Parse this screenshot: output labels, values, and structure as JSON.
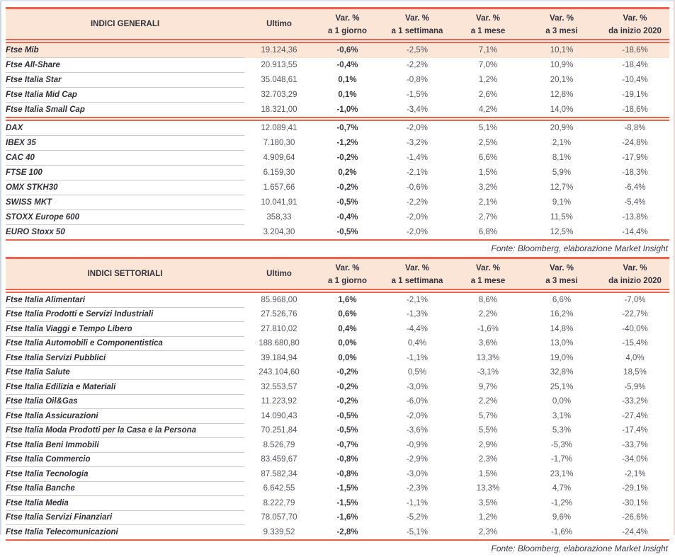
{
  "colors": {
    "accent_coral": "#f1604b",
    "header_bg": "#fbe5d6",
    "highlight_row_bg": "#fbe6d7",
    "name_text": "#2f2f3a",
    "number_text": "#54545e",
    "row_separator": "#c9c9c9"
  },
  "column_names": [
    "ultimo",
    "var-1-giorno",
    "var-1-settimana",
    "var-1-mese",
    "var-3-mesi",
    "var-inizio-2020"
  ],
  "tables": [
    {
      "title": "INDICI GENERALI",
      "col_headers": [
        {
          "l1": "Ultimo",
          "l2": ""
        },
        {
          "l1": "Var. %",
          "l2": "a 1 giorno"
        },
        {
          "l1": "Var. %",
          "l2": "a 1 settimana"
        },
        {
          "l1": "Var. %",
          "l2": "a 1 mese"
        },
        {
          "l1": "Var. %",
          "l2": "a 3 mesi"
        },
        {
          "l1": "Var. %",
          "l2": "da inizio 2020"
        }
      ],
      "sections": [
        {
          "rows": [
            {
              "name": "Ftse Mib",
              "highlight": true,
              "values": [
                "19.124,36",
                "-0,6%",
                "-2,5%",
                "7,1%",
                "10,1%",
                "-18,6%"
              ]
            },
            {
              "name": "Ftse All-Share",
              "highlight": false,
              "values": [
                "20.913,55",
                "-0,4%",
                "-2,2%",
                "7,0%",
                "10,9%",
                "-18,4%"
              ]
            },
            {
              "name": "Ftse Italia Star",
              "highlight": false,
              "values": [
                "35.048,61",
                "0,1%",
                "-0,8%",
                "1,2%",
                "20,1%",
                "-10,4%"
              ]
            },
            {
              "name": "Ftse Italia Mid Cap",
              "highlight": false,
              "values": [
                "32.703,29",
                "0,1%",
                "-1,5%",
                "2,6%",
                "12,8%",
                "-19,1%"
              ]
            },
            {
              "name": "Ftse Italia Small Cap",
              "highlight": false,
              "values": [
                "18.321,00",
                "-1,0%",
                "-3,4%",
                "4,2%",
                "14,0%",
                "-18,6%"
              ]
            }
          ]
        },
        {
          "rows": [
            {
              "name": "DAX",
              "highlight": false,
              "values": [
                "12.089,41",
                "-0,7%",
                "-2,0%",
                "5,1%",
                "20,9%",
                "-8,8%"
              ]
            },
            {
              "name": "IBEX 35",
              "highlight": false,
              "values": [
                "7.180,30",
                "-1,2%",
                "-3,2%",
                "2,5%",
                "2,1%",
                "-24,8%"
              ]
            },
            {
              "name": "CAC 40",
              "highlight": false,
              "values": [
                "4.909,64",
                "-0,2%",
                "-1,4%",
                "6,6%",
                "8,1%",
                "-17,9%"
              ]
            },
            {
              "name": "FTSE 100",
              "highlight": false,
              "values": [
                "6.159,30",
                "0,2%",
                "-2,1%",
                "1,5%",
                "5,9%",
                "-18,3%"
              ]
            },
            {
              "name": "OMX STKH30",
              "highlight": false,
              "values": [
                "1.657,66",
                "-0,2%",
                "-0,6%",
                "3,2%",
                "12,7%",
                "-6,4%"
              ]
            },
            {
              "name": "SWISS MKT",
              "highlight": false,
              "values": [
                "10.041,91",
                "-0,5%",
                "-2,2%",
                "2,1%",
                "9,1%",
                "-5,4%"
              ]
            },
            {
              "name": "STOXX Europe 600",
              "highlight": false,
              "values": [
                "358,33",
                "-0,4%",
                "-2,0%",
                "2,7%",
                "11,5%",
                "-13,8%"
              ]
            },
            {
              "name": "EURO Stoxx 50",
              "highlight": false,
              "values": [
                "3.204,30",
                "-0,5%",
                "-2,0%",
                "6,8%",
                "12,5%",
                "-14,4%"
              ]
            }
          ]
        }
      ],
      "source": "Fonte: Bloomberg, elaborazione Market Insight"
    },
    {
      "title": "INDICI SETTORIALI",
      "col_headers": [
        {
          "l1": "Ultimo",
          "l2": ""
        },
        {
          "l1": "Var. %",
          "l2": "a 1 giorno"
        },
        {
          "l1": "Var. %",
          "l2": "a 1 settimana"
        },
        {
          "l1": "Var. %",
          "l2": "a 1 mese"
        },
        {
          "l1": "Var. %",
          "l2": "a 3 mesi"
        },
        {
          "l1": "Var. %",
          "l2": "da inizio 2020"
        }
      ],
      "sections": [
        {
          "rows": [
            {
              "name": "Ftse Italia Alimentari",
              "highlight": false,
              "values": [
                "85.968,00",
                "1,6%",
                "-2,1%",
                "8,6%",
                "6,6%",
                "-7,0%"
              ]
            },
            {
              "name": "Ftse Italia Prodotti e Servizi Industriali",
              "highlight": false,
              "values": [
                "27.526,76",
                "0,6%",
                "-1,3%",
                "2,2%",
                "16,2%",
                "-22,7%"
              ]
            },
            {
              "name": "Ftse Italia Viaggi e Tempo Libero",
              "highlight": false,
              "values": [
                "27.810,02",
                "0,4%",
                "-4,4%",
                "-1,6%",
                "14,8%",
                "-40,0%"
              ]
            },
            {
              "name": "Ftse Italia Automobili e Componentistica",
              "highlight": false,
              "values": [
                "188.680,80",
                "0,0%",
                "0,4%",
                "3,6%",
                "13,0%",
                "-15,4%"
              ]
            },
            {
              "name": "Ftse Italia Servizi Pubblici",
              "highlight": false,
              "values": [
                "39.184,94",
                "0,0%",
                "-1,1%",
                "13,3%",
                "19,0%",
                "4,0%"
              ]
            },
            {
              "name": "Ftse Italia Salute",
              "highlight": false,
              "values": [
                "243.104,60",
                "-0,2%",
                "0,5%",
                "-3,1%",
                "32,8%",
                "18,5%"
              ]
            },
            {
              "name": "Ftse Italia Edilizia e Materiali",
              "highlight": false,
              "values": [
                "32.553,57",
                "-0,2%",
                "-3,0%",
                "9,7%",
                "25,1%",
                "-5,9%"
              ]
            },
            {
              "name": "Ftse Italia Oil&Gas",
              "highlight": false,
              "values": [
                "11.223,92",
                "-0,2%",
                "-6,0%",
                "2,2%",
                "0,0%",
                "-33,2%"
              ]
            },
            {
              "name": "Ftse Italia Assicurazioni",
              "highlight": false,
              "values": [
                "14.090,43",
                "-0,5%",
                "-2,0%",
                "5,7%",
                "3,1%",
                "-27,4%"
              ]
            },
            {
              "name": "Ftse Italia Moda Prodotti per la Casa e la Persona",
              "highlight": false,
              "values": [
                "70.251,84",
                "-0,5%",
                "-3,6%",
                "5,5%",
                "5,3%",
                "-17,4%"
              ]
            },
            {
              "name": "Ftse Italia Beni Immobili",
              "highlight": false,
              "values": [
                "8.526,79",
                "-0,7%",
                "-0,9%",
                "2,9%",
                "-5,3%",
                "-33,7%"
              ]
            },
            {
              "name": "Ftse Italia Commercio",
              "highlight": false,
              "values": [
                "83.459,67",
                "-0,8%",
                "-2,9%",
                "2,3%",
                "-1,7%",
                "-34,0%"
              ]
            },
            {
              "name": "Ftse Italia Tecnologia",
              "highlight": false,
              "values": [
                "87.582,34",
                "-0,8%",
                "-3,0%",
                "1,5%",
                "23,1%",
                "-2,1%"
              ]
            },
            {
              "name": "Ftse Italia Banche",
              "highlight": false,
              "values": [
                "6.642,55",
                "-1,5%",
                "-2,3%",
                "13,3%",
                "4,7%",
                "-29,1%"
              ]
            },
            {
              "name": "Ftse Italia Media",
              "highlight": false,
              "values": [
                "8.222,79",
                "-1,5%",
                "-1,1%",
                "3,5%",
                "-1,2%",
                "-30,1%"
              ]
            },
            {
              "name": "Ftse Italia Servizi Finanziari",
              "highlight": false,
              "values": [
                "78.057,70",
                "-1,6%",
                "-5,2%",
                "1,2%",
                "9,6%",
                "-26,6%"
              ]
            },
            {
              "name": "Ftse Italia Telecomunicazioni",
              "highlight": false,
              "values": [
                "9.339,52",
                "-2,8%",
                "-5,1%",
                "2,3%",
                "-1,6%",
                "-24,4%"
              ]
            }
          ]
        }
      ],
      "source": "Fonte: Bloomberg, elaborazione Market Insight"
    }
  ]
}
